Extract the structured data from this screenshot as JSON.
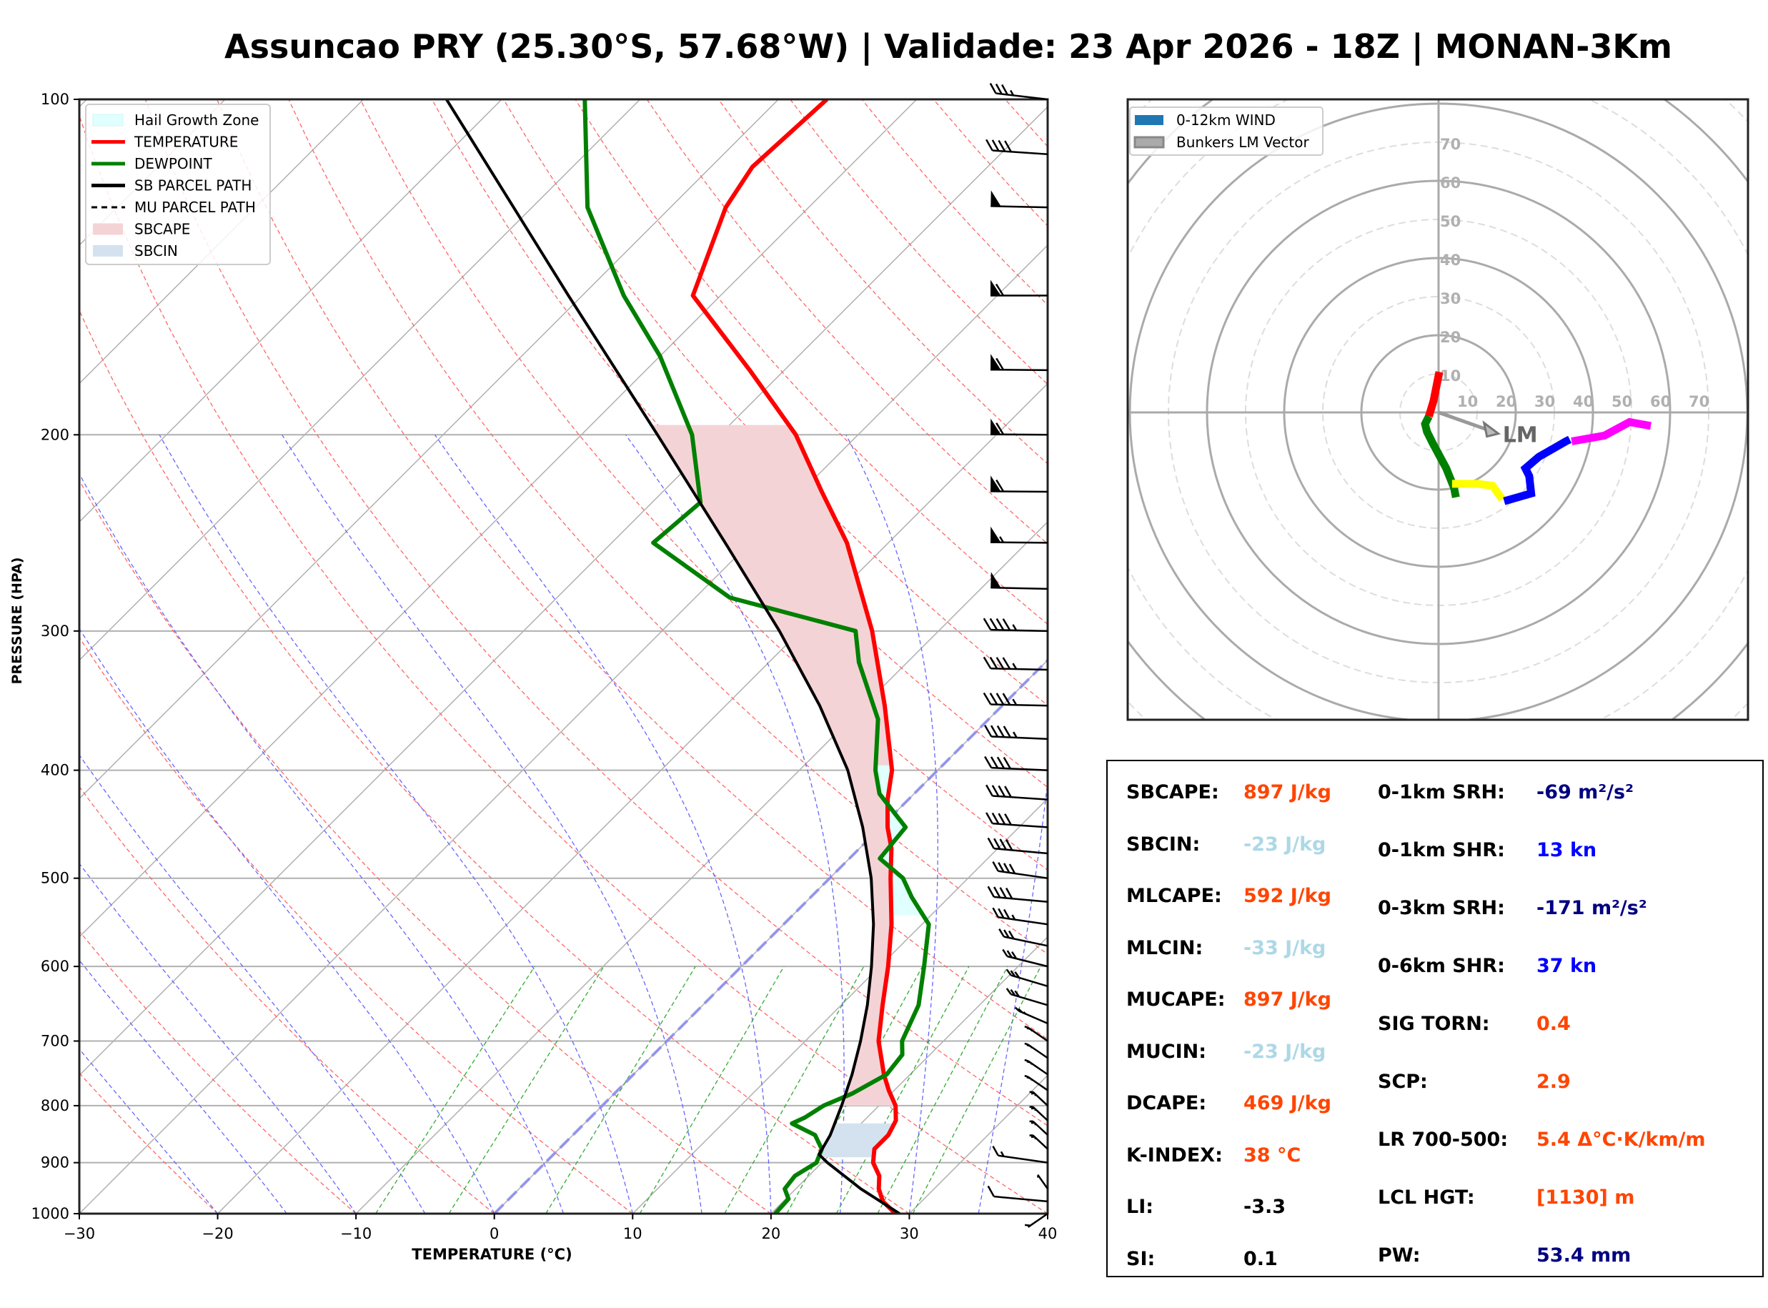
{
  "title": "Assuncao PRY (25.30°S, 57.68°W) | Validade: 23 Apr 2026 - 18Z | MONAN-3Km",
  "chart_data": [
    {
      "type": "line",
      "name": "skew-t",
      "xlabel": "TEMPERATURE (°C)",
      "ylabel": "PRESSURE (HPA)",
      "xlim": [
        -30,
        40
      ],
      "ylim": [
        1000,
        100
      ],
      "yscale": "log",
      "skew": 45,
      "xticks": [
        -30,
        -20,
        -10,
        0,
        10,
        20,
        30,
        40
      ],
      "xtick_labels": [
        "−30",
        "−20",
        "−10",
        "0",
        "10",
        "20",
        "30",
        "40"
      ],
      "yticks": [
        1000,
        900,
        800,
        700,
        600,
        500,
        400,
        300,
        200,
        100
      ],
      "ytick_labels": [
        "1000",
        "900",
        "800",
        "700",
        "600",
        "500",
        "400",
        "300",
        "200",
        "100"
      ],
      "grid": true,
      "legend": {
        "placement": "top-left",
        "entries": [
          {
            "label": "Hail Growth Zone",
            "kind": "patch",
            "color": "#e0ffff"
          },
          {
            "label": "TEMPERATURE",
            "kind": "line",
            "color": "#ff0000"
          },
          {
            "label": "DEWPOINT",
            "kind": "line",
            "color": "#008000"
          },
          {
            "label": "SB PARCEL PATH",
            "kind": "line",
            "color": "#000000"
          },
          {
            "label": "MU PARCEL PATH",
            "kind": "dashed",
            "color": "#000000"
          },
          {
            "label": "SBCAPE",
            "kind": "patch",
            "color": "#f4d3d6"
          },
          {
            "label": "SBCIN",
            "kind": "patch",
            "color": "#d3e2ee"
          }
        ]
      },
      "series": [
        {
          "name": "TEMPERATURE",
          "color": "#ff0000",
          "points": [
            [
              1000,
              29.0
            ],
            [
              975,
              27.2
            ],
            [
              950,
              26.0
            ],
            [
              925,
              25.1
            ],
            [
              900,
              23.7
            ],
            [
              875,
              22.8
            ],
            [
              850,
              22.8
            ],
            [
              825,
              22.3
            ],
            [
              800,
              21.2
            ],
            [
              775,
              19.6
            ],
            [
              750,
              18.1
            ],
            [
              700,
              15.3
            ],
            [
              650,
              13.0
            ],
            [
              600,
              10.6
            ],
            [
              550,
              7.8
            ],
            [
              500,
              4.4
            ],
            [
              470,
              2.3
            ],
            [
              450,
              0.5
            ],
            [
              425,
              -1.5
            ],
            [
              400,
              -3.3
            ],
            [
              350,
              -8.5
            ],
            [
              300,
              -14.8
            ],
            [
              250,
              -23.0
            ],
            [
              225,
              -28.5
            ],
            [
              200,
              -34.5
            ],
            [
              175,
              -42.5
            ],
            [
              150,
              -52.0
            ],
            [
              125,
              -56.0
            ],
            [
              115,
              -57.0
            ],
            [
              100,
              -56.5
            ]
          ]
        },
        {
          "name": "DEWPOINT",
          "color": "#008000",
          "points": [
            [
              1000,
              20.3
            ],
            [
              970,
              20.2
            ],
            [
              950,
              19.2
            ],
            [
              925,
              19.0
            ],
            [
              900,
              19.6
            ],
            [
              875,
              19.0
            ],
            [
              850,
              17.5
            ],
            [
              830,
              15.0
            ],
            [
              820,
              15.5
            ],
            [
              800,
              16.0
            ],
            [
              780,
              17.2
            ],
            [
              750,
              18.3
            ],
            [
              720,
              18.0
            ],
            [
              700,
              17.0
            ],
            [
              650,
              15.6
            ],
            [
              600,
              13.2
            ],
            [
              550,
              10.5
            ],
            [
              520,
              7.3
            ],
            [
              500,
              5.3
            ],
            [
              480,
              2.2
            ],
            [
              450,
              1.8
            ],
            [
              420,
              -2.5
            ],
            [
              400,
              -4.5
            ],
            [
              360,
              -8.0
            ],
            [
              320,
              -13.5
            ],
            [
              300,
              -16.0
            ],
            [
              280,
              -27.5
            ],
            [
              250,
              -37.0
            ],
            [
              230,
              -36.5
            ],
            [
              200,
              -42.0
            ],
            [
              170,
              -50.0
            ],
            [
              150,
              -57.0
            ],
            [
              125,
              -66.0
            ],
            [
              100,
              -74.0
            ]
          ]
        },
        {
          "name": "SB PARCEL PATH",
          "color": "#000000",
          "points": [
            [
              1000,
              29.3
            ],
            [
              950,
              24.7
            ],
            [
              900,
              20.4
            ],
            [
              885,
              19.2
            ],
            [
              850,
              18.6
            ],
            [
              800,
              17.3
            ],
            [
              750,
              15.8
            ],
            [
              700,
              14.0
            ],
            [
              650,
              11.9
            ],
            [
              600,
              9.4
            ],
            [
              550,
              6.5
            ],
            [
              500,
              3.0
            ],
            [
              450,
              -1.3
            ],
            [
              400,
              -6.5
            ],
            [
              350,
              -13.2
            ],
            [
              300,
              -21.5
            ],
            [
              250,
              -31.8
            ],
            [
              200,
              -44.5
            ],
            [
              150,
              -61.0
            ],
            [
              100,
              -84.0
            ]
          ]
        }
      ],
      "shaded": [
        {
          "name": "SBCAPE",
          "color": "#f4d3d6",
          "between": [
            "TEMPERATURE",
            "SB PARCEL PATH"
          ],
          "p_range": [
            800,
            195
          ]
        },
        {
          "name": "SBCIN",
          "color": "#d3e2ee",
          "between": [
            "TEMPERATURE",
            "SB PARCEL PATH"
          ],
          "p_range": [
            890,
            830
          ]
        },
        {
          "name": "Hail Growth Zone",
          "color": "#e0ffff",
          "between": [
            "DEWPOINT",
            "TEMPERATURE"
          ],
          "p_range": [
            540,
            395
          ]
        }
      ],
      "wind_barbs": [
        {
          "p": 1000,
          "speed": 5,
          "dir": 200
        },
        {
          "p": 975,
          "speed": 10,
          "dir": 290
        },
        {
          "p": 950,
          "speed": 5,
          "dir": 350
        },
        {
          "p": 900,
          "speed": 15,
          "dir": 300
        },
        {
          "p": 875,
          "speed": 25,
          "dir": 345
        },
        {
          "p": 850,
          "speed": 25,
          "dir": 345
        },
        {
          "p": 825,
          "speed": 25,
          "dir": 345
        },
        {
          "p": 800,
          "speed": 25,
          "dir": 345
        },
        {
          "p": 775,
          "speed": 25,
          "dir": 340
        },
        {
          "p": 750,
          "speed": 25,
          "dir": 340
        },
        {
          "p": 725,
          "speed": 25,
          "dir": 340
        },
        {
          "p": 700,
          "speed": 25,
          "dir": 340
        },
        {
          "p": 675,
          "speed": 25,
          "dir": 330
        },
        {
          "p": 650,
          "speed": 30,
          "dir": 320
        },
        {
          "p": 625,
          "speed": 30,
          "dir": 320
        },
        {
          "p": 600,
          "speed": 30,
          "dir": 315
        },
        {
          "p": 575,
          "speed": 30,
          "dir": 310
        },
        {
          "p": 550,
          "speed": 35,
          "dir": 300
        },
        {
          "p": 525,
          "speed": 40,
          "dir": 290
        },
        {
          "p": 500,
          "speed": 40,
          "dir": 300
        },
        {
          "p": 475,
          "speed": 40,
          "dir": 290
        },
        {
          "p": 450,
          "speed": 40,
          "dir": 285
        },
        {
          "p": 425,
          "speed": 40,
          "dir": 285
        },
        {
          "p": 400,
          "speed": 40,
          "dir": 280
        },
        {
          "p": 375,
          "speed": 45,
          "dir": 280
        },
        {
          "p": 350,
          "speed": 45,
          "dir": 275
        },
        {
          "p": 325,
          "speed": 45,
          "dir": 275
        },
        {
          "p": 300,
          "speed": 45,
          "dir": 275
        },
        {
          "p": 275,
          "speed": 50,
          "dir": 275
        },
        {
          "p": 250,
          "speed": 55,
          "dir": 272
        },
        {
          "p": 225,
          "speed": 60,
          "dir": 272
        },
        {
          "p": 200,
          "speed": 60,
          "dir": 272
        },
        {
          "p": 175,
          "speed": 60,
          "dir": 272
        },
        {
          "p": 150,
          "speed": 60,
          "dir": 270
        },
        {
          "p": 125,
          "speed": 50,
          "dir": 275
        },
        {
          "p": 112,
          "speed": 40,
          "dir": 285
        },
        {
          "p": 100,
          "speed": 35,
          "dir": 295
        }
      ]
    },
    {
      "type": "line",
      "name": "hodograph",
      "rings": [
        10,
        20,
        30,
        40,
        50,
        60,
        70
      ],
      "ring_labels": [
        "10",
        "20",
        "30",
        "40",
        "50",
        "60",
        "70"
      ],
      "range": 80,
      "legend": {
        "placement": "top-left",
        "entries": [
          {
            "label": "0-12km WIND",
            "color": "#1f77b4"
          },
          {
            "label": "Bunkers LM Vector",
            "color": "#aaaaaa"
          }
        ]
      },
      "segments": [
        {
          "color": "#ff0000",
          "points": [
            [
              0.2,
              10.5
            ],
            [
              -0.5,
              7
            ],
            [
              -1.3,
              3
            ],
            [
              -2.5,
              -1
            ]
          ]
        },
        {
          "color": "#008000",
          "points": [
            [
              -2.5,
              -1
            ],
            [
              -3.5,
              -3
            ],
            [
              -3.0,
              -5
            ],
            [
              -1.5,
              -8
            ],
            [
              2.0,
              -14.5
            ],
            [
              4.0,
              -19.5
            ],
            [
              4.5,
              -22
            ]
          ]
        },
        {
          "color": "#ffff00",
          "points": [
            [
              3.5,
              -18.5
            ],
            [
              10,
              -18.5
            ],
            [
              14,
              -19
            ],
            [
              16.5,
              -22.5
            ]
          ]
        },
        {
          "color": "#0000ff",
          "points": [
            [
              17,
              -23
            ],
            [
              24,
              -21
            ],
            [
              23.5,
              -16.5
            ],
            [
              22.5,
              -14.5
            ],
            [
              26,
              -11.5
            ],
            [
              33,
              -7.5
            ],
            [
              34,
              -7
            ]
          ]
        },
        {
          "color": "#ff00ff",
          "points": [
            [
              34.5,
              -7.5
            ],
            [
              43,
              -6
            ],
            [
              49.5,
              -2.5
            ],
            [
              55,
              -3.5
            ]
          ]
        }
      ],
      "bunkers_lm": {
        "label": "LM",
        "u": 15.5,
        "v": -5.5,
        "color": "#999999"
      }
    }
  ],
  "stats": {
    "left": [
      {
        "label": "SBCAPE:",
        "value": "897 J/kg",
        "color": "#ff4500"
      },
      {
        "label": "SBCIN:",
        "value": "-23 J/kg",
        "color": "#add8e6"
      },
      {
        "label": "MLCAPE:",
        "value": "592 J/kg",
        "color": "#ff4500"
      },
      {
        "label": "MLCIN:",
        "value": "-33 J/kg",
        "color": "#add8e6"
      },
      {
        "label": "MUCAPE:",
        "value": "897 J/kg",
        "color": "#ff4500"
      },
      {
        "label": "MUCIN:",
        "value": "-23 J/kg",
        "color": "#add8e6"
      },
      {
        "label": "DCAPE:",
        "value": "469 J/kg",
        "color": "#ff4500"
      },
      {
        "label": "K-INDEX:",
        "value": "38 °C",
        "color": "#ff4500"
      },
      {
        "label": "LI:",
        "value": "-3.3",
        "color": "#000000"
      },
      {
        "label": "SI:",
        "value": "0.1",
        "color": "#000000"
      }
    ],
    "right": [
      {
        "label": "0-1km SRH:",
        "value": "-69 m²/s²",
        "color": "#000080"
      },
      {
        "label": "0-1km SHR:",
        "value": "13 kn",
        "color": "#0000ff"
      },
      {
        "label": "0-3km SRH:",
        "value": "-171 m²/s²",
        "color": "#000080"
      },
      {
        "label": "0-6km SHR:",
        "value": "37 kn",
        "color": "#0000ff"
      },
      {
        "label": "SIG TORN:",
        "value": "0.4",
        "color": "#ff4500"
      },
      {
        "label": "SCP:",
        "value": "2.9",
        "color": "#ff4500"
      },
      {
        "label": "LR 700-500:",
        "value": "5.4 Δ°C·K/km/m",
        "color": "#ff4500"
      },
      {
        "label": "LCL HGT:",
        "value": "[1130] m",
        "color": "#ff4500"
      },
      {
        "label": "PW:",
        "value": "53.4 mm",
        "color": "#000080"
      }
    ]
  }
}
